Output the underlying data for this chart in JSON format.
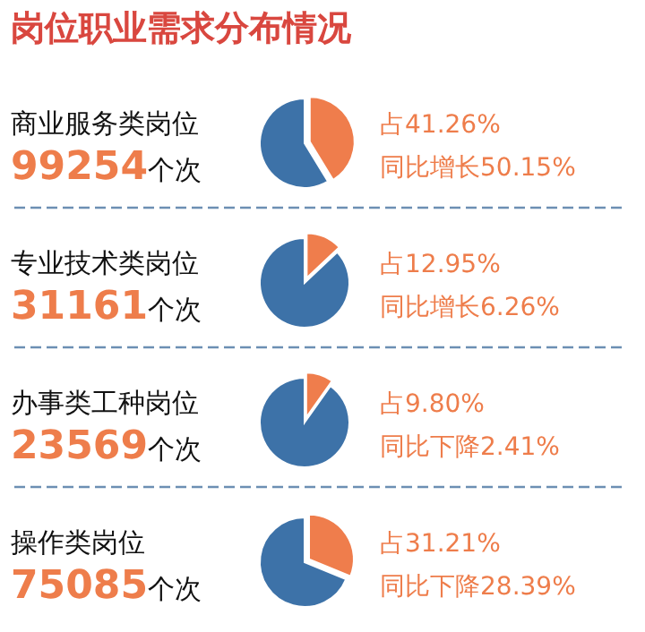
{
  "chart_data": [
    {
      "type": "other",
      "title": "岗位职业需求分布情况"
    },
    {
      "type": "pie",
      "title": "商业服务类岗位",
      "subtitle": "99254个次",
      "categories": [
        null,
        null
      ],
      "values": [
        41.26,
        58.74
      ],
      "colors": [
        "#ef7d4c",
        "#3d72a8"
      ],
      "annotations": [
        "占41.26%",
        "同比增长50.15%"
      ]
    },
    {
      "type": "pie",
      "title": "专业技术类岗位",
      "subtitle": "31161个次",
      "categories": [
        null,
        null
      ],
      "values": [
        12.95,
        87.05
      ],
      "colors": [
        "#ef7d4c",
        "#3d72a8"
      ],
      "annotations": [
        "占12.95%",
        "同比增长6.26%"
      ]
    },
    {
      "type": "pie",
      "title": "办事类工种岗位",
      "subtitle": "23569个次",
      "categories": [
        null,
        null
      ],
      "values": [
        9.8,
        90.2
      ],
      "colors": [
        "#ef7d4c",
        "#3d72a8"
      ],
      "annotations": [
        "占9.80%",
        "同比下降2.41%"
      ]
    },
    {
      "type": "pie",
      "title": "操作类岗位",
      "subtitle": "75085个次",
      "categories": [
        null,
        null
      ],
      "values": [
        31.21,
        68.79
      ],
      "colors": [
        "#ef7d4c",
        "#3d72a8"
      ],
      "annotations": [
        "占31.21%",
        "同比下降28.39%"
      ]
    }
  ]
}
